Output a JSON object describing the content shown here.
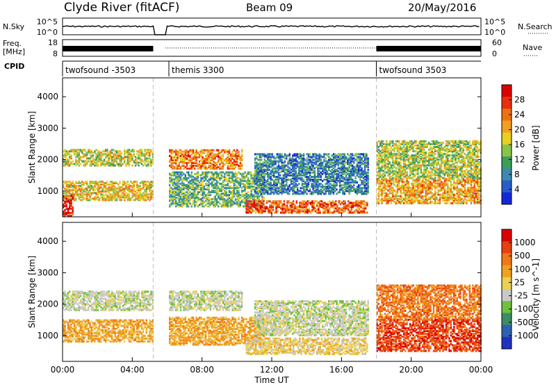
{
  "header": {
    "title": "Clyde River (fitACF)",
    "beam": "Beam 09",
    "date": "20/May/2016"
  },
  "panel_labels": {
    "nsky": "N.Sky",
    "nsearch": "N.Search",
    "freq_line1": "Freq.",
    "freq_line2": "[MHz]",
    "nave": "Nave",
    "cpid": "CPID"
  },
  "small_axes": {
    "nsky_ticks_left": [
      "10^5",
      "10^0"
    ],
    "nsearch_ticks_right": [
      "10^5",
      "10^0"
    ],
    "freq_ticks_left": [
      "18",
      "8"
    ],
    "nave_ticks_right": [
      "60",
      "0"
    ]
  },
  "cpid_segments": [
    {
      "label": "twofsound -3503",
      "start_h": 0.0
    },
    {
      "label": "themis 3300",
      "start_h": 6.1
    },
    {
      "label": "twofsound 3503",
      "start_h": 18.0
    }
  ],
  "gaps_h": [
    [
      5.2,
      5.9
    ]
  ],
  "colors": {
    "power": [
      "#1428d8",
      "#2a5cc8",
      "#3b8bb0",
      "#3c9e5a",
      "#8bc34a",
      "#e8d020",
      "#f0a020",
      "#f07010",
      "#e83010",
      "#dc0000"
    ],
    "velocity": [
      "#2030c0",
      "#3060b0",
      "#3c8c64",
      "#70c040",
      "#c8c8c8",
      "#e8d050",
      "#f0a020",
      "#f07818",
      "#e84010",
      "#dc0000"
    ]
  },
  "chart_data": [
    {
      "type": "heatmap",
      "name": "Power",
      "ylabel": "Slant Range [km]",
      "ylim": [
        180,
        4600
      ],
      "yticks": [
        1000,
        2000,
        3000,
        4000
      ],
      "xlim_h": [
        0,
        24
      ],
      "colorbar_label": "Power [dB]",
      "colorbar_ticks": [
        "4",
        "8",
        "12",
        "16",
        "20",
        "24",
        "28"
      ],
      "colorbar_range": [
        0,
        30
      ],
      "blobs": [
        {
          "t0": 0.0,
          "t1": 5.2,
          "r0": 1800,
          "r1": 2300,
          "v": 14
        },
        {
          "t0": 0.0,
          "t1": 5.2,
          "r0": 700,
          "r1": 1300,
          "v": 16
        },
        {
          "t0": 0.0,
          "t1": 0.6,
          "r0": 200,
          "r1": 900,
          "v": 26
        },
        {
          "t0": 6.1,
          "t1": 10.3,
          "r0": 1700,
          "r1": 2300,
          "v": 20
        },
        {
          "t0": 6.1,
          "t1": 11.5,
          "r0": 500,
          "r1": 1600,
          "v": 10
        },
        {
          "t0": 10.5,
          "t1": 17.5,
          "r0": 300,
          "r1": 700,
          "v": 22
        },
        {
          "t0": 11.0,
          "t1": 17.5,
          "r0": 900,
          "r1": 2200,
          "v": 6
        },
        {
          "t0": 18.0,
          "t1": 24.0,
          "r0": 600,
          "r1": 1400,
          "v": 18
        },
        {
          "t0": 18.0,
          "t1": 24.0,
          "r0": 1400,
          "r1": 2600,
          "v": 13
        }
      ]
    },
    {
      "type": "heatmap",
      "name": "Velocity",
      "ylabel": "Slant Range [km]",
      "ylim": [
        180,
        4600
      ],
      "yticks": [
        1000,
        2000,
        3000,
        4000
      ],
      "xlim_h": [
        0,
        24
      ],
      "xlabel": "Time UT",
      "xticks": [
        "00:00",
        "04:00",
        "08:00",
        "12:00",
        "16:00",
        "20:00",
        "00:00"
      ],
      "colorbar_label": "Velocity [m s^-1]",
      "colorbar_ticks": [
        "-1000",
        "-500",
        "-100",
        "-25",
        "25",
        "100",
        "500",
        "1000"
      ],
      "blobs": [
        {
          "t0": 0.0,
          "t1": 5.2,
          "r0": 1800,
          "r1": 2400,
          "v": 4
        },
        {
          "t0": 0.0,
          "t1": 5.2,
          "r0": 800,
          "r1": 1500,
          "v": 6
        },
        {
          "t0": 6.1,
          "t1": 10.3,
          "r0": 1800,
          "r1": 2400,
          "v": 4
        },
        {
          "t0": 6.1,
          "t1": 11.5,
          "r0": 700,
          "r1": 1600,
          "v": 6
        },
        {
          "t0": 10.5,
          "t1": 17.5,
          "r0": 400,
          "r1": 900,
          "v": 5
        },
        {
          "t0": 11.0,
          "t1": 17.5,
          "r0": 1000,
          "r1": 2100,
          "v": 4
        },
        {
          "t0": 18.0,
          "t1": 24.0,
          "r0": 500,
          "r1": 1500,
          "v": 8
        },
        {
          "t0": 18.0,
          "t1": 24.0,
          "r0": 1500,
          "r1": 2600,
          "v": 7
        }
      ]
    }
  ]
}
